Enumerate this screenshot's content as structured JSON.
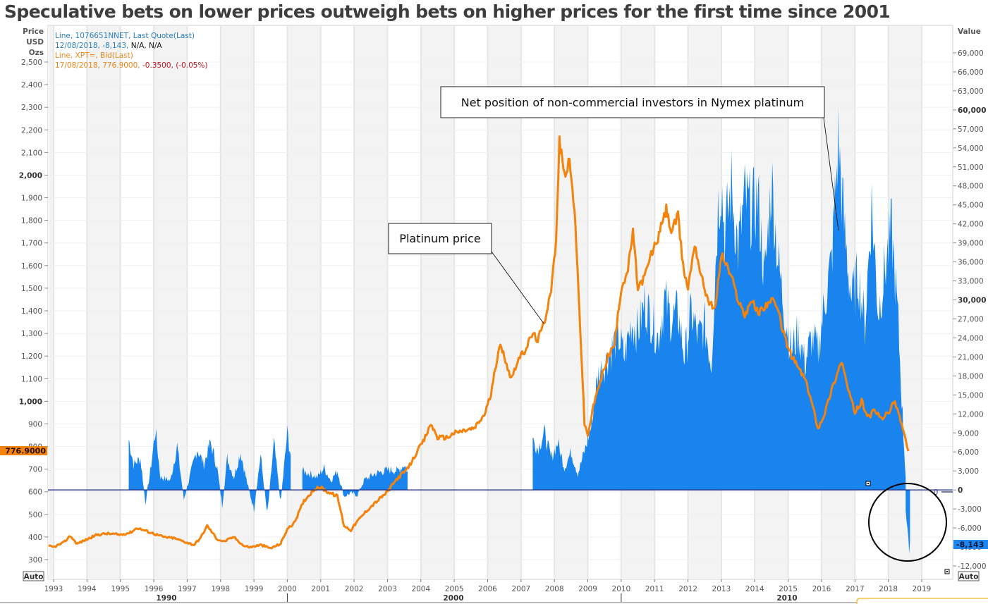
{
  "title": "Speculative bets on lower prices outweigh bets on higher prices for the first time since 2001",
  "left_axis": {
    "header": [
      "Price",
      "USD",
      "Ozs"
    ],
    "auto_label": "Auto",
    "current_value_label": "776.9000",
    "current_value_color": "#f5820a"
  },
  "right_axis": {
    "header": "Value",
    "auto_label": "Auto",
    "current_value_label": "-8,143",
    "current_value_color": "#1f86f0",
    "zero_marker": "0"
  },
  "legend": {
    "series1_line1": "Line, 1076651NNET, Last Quote(Last)",
    "series1_line2_a": "12/08/2018, -8,143, ",
    "series1_line2_b": "N/A, N/A",
    "series2_line1": "Line, XPT=, Bid(Last)",
    "series2_line2_a": "17/08/2018, 776.9000, ",
    "series2_line2_b": "-0.3500, (-0.05%)"
  },
  "callouts": {
    "platinum_price": "Platinum price",
    "net_position": "Net position of non-commercial investors in Nymex platinum"
  },
  "colors": {
    "price_line": "#f5820a",
    "net_position_area": "#1a84ee",
    "zero_line": "#1a237e",
    "alt_band": "#f3f3f3",
    "negative_value": "#c0141e"
  },
  "chart_data": {
    "type": "line+area",
    "title": "Speculative bets on lower prices outweigh bets on higher prices for the first time since 2001",
    "x_ticks": [
      "1993",
      "1994",
      "1995",
      "1996",
      "1997",
      "1998",
      "1999",
      "2000",
      "2001",
      "2002",
      "2003",
      "2004",
      "2005",
      "2006",
      "2007",
      "2008",
      "2009",
      "2010",
      "2011",
      "2012",
      "2013",
      "2014",
      "2015",
      "2016",
      "2017",
      "2018",
      "2019"
    ],
    "decade_labels": [
      "1990",
      "2000",
      "2010"
    ],
    "xlim": [
      1992.8,
      2019.9
    ],
    "left_axis": {
      "label": "Price USD Ozs",
      "ylim": [
        250,
        2550
      ],
      "ticks": [
        300,
        400,
        500,
        600,
        700,
        800,
        900,
        1000,
        1100,
        1200,
        1300,
        1400,
        1500,
        1600,
        1700,
        1800,
        1900,
        2000,
        2100,
        2200,
        2300,
        2400,
        2500
      ],
      "tick_labels": [
        "300",
        "400",
        "500",
        "600",
        "700",
        "800",
        "900",
        "1,000",
        "1,100",
        "1,200",
        "1,300",
        "1,400",
        "1,500",
        "1,600",
        "1,700",
        "1,800",
        "1,900",
        "2,000",
        "2,100",
        "2,200",
        "2,300",
        "2,400",
        "2,500"
      ],
      "bold_ticks": [
        "1,000",
        "2,000"
      ]
    },
    "right_axis": {
      "label": "Value",
      "ylim": [
        -13000,
        72000
      ],
      "ticks": [
        -12000,
        -9000,
        -6000,
        -3000,
        0,
        3000,
        6000,
        9000,
        12000,
        15000,
        18000,
        21000,
        24000,
        27000,
        30000,
        33000,
        36000,
        39000,
        42000,
        45000,
        48000,
        51000,
        54000,
        57000,
        60000,
        63000,
        66000,
        69000
      ],
      "tick_labels": [
        "-12,000",
        "-9,000",
        "-6,000",
        "-3,000",
        "0",
        "3,000",
        "6,000",
        "9,000",
        "12,000",
        "15,000",
        "18,000",
        "21,000",
        "24,000",
        "27,000",
        "30,000",
        "33,000",
        "36,000",
        "39,000",
        "42,000",
        "45,000",
        "48,000",
        "51,000",
        "54,000",
        "57,000",
        "60,000",
        "63,000",
        "66,000",
        "69,000"
      ],
      "bold_ticks": [
        "0",
        "30,000",
        "60,000"
      ]
    },
    "series": [
      {
        "name": "Platinum price (XPT=, Bid)",
        "axis": "left",
        "kind": "line",
        "x": [
          1992.85,
          1993.0,
          1993.3,
          1993.5,
          1993.7,
          1994.0,
          1994.3,
          1994.6,
          1995.0,
          1995.3,
          1995.5,
          1995.8,
          1996.0,
          1996.3,
          1996.6,
          1996.9,
          1997.2,
          1997.4,
          1997.6,
          1997.9,
          1998.1,
          1998.4,
          1998.7,
          1998.9,
          1999.2,
          1999.5,
          1999.8,
          2000.0,
          2000.2,
          2000.5,
          2000.8,
          2001.0,
          2001.2,
          2001.5,
          2001.7,
          2001.9,
          2002.1,
          2002.4,
          2002.7,
          2003.0,
          2003.3,
          2003.6,
          2003.9,
          2004.1,
          2004.3,
          2004.5,
          2004.8,
          2005.0,
          2005.3,
          2005.6,
          2005.9,
          2006.1,
          2006.35,
          2006.5,
          2006.7,
          2006.9,
          2007.1,
          2007.35,
          2007.5,
          2007.7,
          2007.9,
          2008.05,
          2008.15,
          2008.3,
          2008.45,
          2008.6,
          2008.75,
          2008.9,
          2009.0,
          2009.2,
          2009.4,
          2009.6,
          2009.8,
          2010.0,
          2010.2,
          2010.35,
          2010.5,
          2010.7,
          2010.9,
          2011.1,
          2011.35,
          2011.5,
          2011.7,
          2011.85,
          2012.0,
          2012.2,
          2012.4,
          2012.6,
          2012.8,
          2013.0,
          2013.1,
          2013.3,
          2013.5,
          2013.7,
          2013.9,
          2014.1,
          2014.3,
          2014.5,
          2014.7,
          2014.9,
          2015.1,
          2015.3,
          2015.5,
          2015.7,
          2015.9,
          2016.1,
          2016.3,
          2016.6,
          2016.8,
          2017.0,
          2017.2,
          2017.4,
          2017.6,
          2017.8,
          2018.0,
          2018.2,
          2018.4,
          2018.6
        ],
        "values": [
          360,
          355,
          375,
          405,
          370,
          390,
          410,
          415,
          410,
          420,
          440,
          425,
          415,
          400,
          395,
          380,
          365,
          395,
          450,
          390,
          380,
          400,
          360,
          355,
          365,
          350,
          370,
          435,
          460,
          560,
          610,
          620,
          600,
          580,
          450,
          430,
          470,
          520,
          560,
          600,
          660,
          700,
          780,
          830,
          900,
          840,
          840,
          860,
          870,
          880,
          940,
          1030,
          1250,
          1200,
          1100,
          1180,
          1220,
          1300,
          1270,
          1350,
          1500,
          1700,
          2150,
          2000,
          2060,
          1850,
          1400,
          900,
          850,
          1000,
          1100,
          1200,
          1250,
          1500,
          1580,
          1750,
          1500,
          1550,
          1650,
          1720,
          1850,
          1750,
          1820,
          1600,
          1500,
          1700,
          1550,
          1450,
          1400,
          1650,
          1620,
          1550,
          1450,
          1380,
          1450,
          1390,
          1420,
          1450,
          1400,
          1280,
          1200,
          1150,
          1100,
          1000,
          880,
          950,
          1050,
          1180,
          1050,
          950,
          1000,
          930,
          960,
          920,
          950,
          1000,
          900,
          780
        ]
      },
      {
        "name": "Net position of non-commercial investors in Nymex platinum (1076651NNET)",
        "axis": "right",
        "kind": "area",
        "segments": [
          {
            "x": [
              1995.25,
              1995.4,
              1995.6,
              1995.75,
              1995.9,
              1996.05,
              1996.2,
              1996.5,
              1996.7,
              1996.9,
              1997.1,
              1997.3,
              1997.5,
              1997.7,
              1997.9,
              1998.05,
              1998.2,
              1998.4,
              1998.6,
              1998.8,
              1999.0,
              1999.2,
              1999.4,
              1999.6,
              1999.8,
              2000.0,
              2000.1
            ],
            "values": [
              8000,
              4000,
              5000,
              -2000,
              3000,
              9500,
              2000,
              1500,
              7000,
              -1500,
              2500,
              6500,
              4000,
              7500,
              3500,
              -2500,
              5000,
              2000,
              6000,
              1000,
              -3000,
              5500,
              -4000,
              7500,
              -2000,
              9000,
              5500
            ]
          },
          {
            "x": [
              2000.45,
              2000.7,
              2000.9,
              2001.1,
              2001.3,
              2001.5,
              2001.7,
              2001.9,
              2002.1,
              2002.3,
              2002.6,
              2002.9,
              2003.1,
              2003.3,
              2003.5,
              2003.6
            ],
            "values": [
              3000,
              2500,
              2000,
              3500,
              1500,
              3000,
              -1000,
              -500,
              -800,
              1500,
              2500,
              3000,
              3200,
              3000,
              4000,
              3000
            ]
          },
          {
            "x": [
              2007.35,
              2007.5,
              2007.7,
              2007.9,
              2008.1,
              2008.3,
              2008.5,
              2008.7,
              2008.95,
              2009.1,
              2009.3,
              2009.5,
              2009.7,
              2009.9,
              2010.1,
              2010.3,
              2010.5,
              2010.7,
              2010.9,
              2011.1,
              2011.3,
              2011.5,
              2011.7,
              2011.9,
              2012.1,
              2012.3,
              2012.5,
              2012.7,
              2012.9,
              2013.0,
              2013.1,
              2013.3,
              2013.5,
              2013.7,
              2013.9,
              2014.1,
              2014.3,
              2014.5,
              2014.7,
              2014.9,
              2015.1,
              2015.3,
              2015.5,
              2015.7,
              2015.9,
              2016.1,
              2016.3,
              2016.5,
              2016.7,
              2016.9,
              2017.1,
              2017.3,
              2017.5,
              2017.7,
              2017.9,
              2018.1,
              2018.3,
              2018.45,
              2018.52
            ],
            "values": [
              8000,
              6500,
              9000,
              5000,
              7500,
              3500,
              6000,
              2500,
              7000,
              10000,
              18000,
              20000,
              22000,
              24500,
              21000,
              26500,
              25000,
              29500,
              27000,
              24000,
              30000,
              27000,
              28000,
              21000,
              28000,
              24000,
              26000,
              20000,
              45000,
              49000,
              40000,
              48000,
              38000,
              46000,
              44000,
              46000,
              33000,
              49000,
              36000,
              28000,
              22000,
              25000,
              20000,
              24000,
              22000,
              30000,
              36000,
              55000,
              40000,
              30000,
              34000,
              26000,
              45000,
              28000,
              35000,
              41000,
              26000,
              9000,
              2000
            ]
          },
          {
            "x": [
              2018.52,
              2018.6,
              2018.65
            ],
            "values": [
              -3000,
              -9000,
              -8143
            ]
          }
        ]
      }
    ],
    "annotations": [
      "Platinum price",
      "Net position of non-commercial investors in Nymex platinum",
      "circle highlighting negative net position in 2018"
    ],
    "last_values": {
      "price": 776.9,
      "price_change": -0.35,
      "price_change_pct": -0.05,
      "net_position": -8143
    },
    "grid": true,
    "legend_position": "top-left"
  }
}
